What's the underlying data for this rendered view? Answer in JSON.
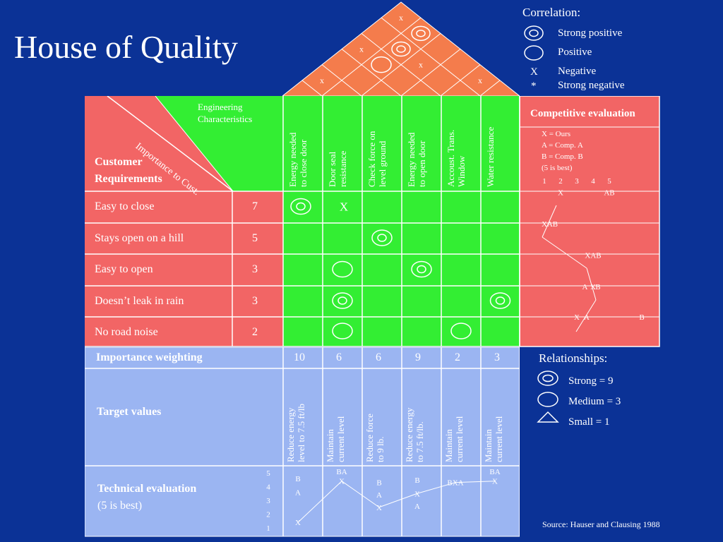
{
  "title": "House of Quality",
  "correlation_legend": {
    "heading": "Correlation:",
    "items": [
      {
        "symbol": "double-circle",
        "label": "Strong positive"
      },
      {
        "symbol": "circle",
        "label": "Positive"
      },
      {
        "symbol_text": "X",
        "label": "Negative"
      },
      {
        "symbol_text": "*",
        "label": "Strong negative"
      }
    ]
  },
  "roof_marks": [
    {
      "row": 0,
      "col": 0,
      "mark": "x"
    },
    {
      "row": 0,
      "col": 1,
      "mark": "double-circle"
    },
    {
      "row": 1,
      "col": 0,
      "mark": "double-circle"
    },
    {
      "row": 2,
      "col": 0,
      "mark": "x"
    },
    {
      "row": 2,
      "col": 1,
      "mark": "circle"
    },
    {
      "row": 2,
      "col": 2,
      "mark": "x"
    },
    {
      "row": 3,
      "col": 0,
      "mark": "x"
    },
    {
      "row": 3,
      "col": 3,
      "mark": "x"
    }
  ],
  "corner": {
    "engineering": "Engineering\nCharacteristics",
    "importance": "Importance to Cust.",
    "customer": "Customer\nRequirements"
  },
  "engineering_characteristics": [
    "Energy needed\nto close door",
    "Door seal\nresistance",
    "Check force on\nlevel ground",
    "Energy needed\nto open door",
    "Accoust. Trans.\nWindow",
    "Water resistance"
  ],
  "customer_requirements": [
    {
      "label": "Easy to close",
      "importance": "7"
    },
    {
      "label": "Stays open on a hill",
      "importance": "5"
    },
    {
      "label": "Easy to open",
      "importance": "3"
    },
    {
      "label": "Doesn’t leak in rain",
      "importance": "3"
    },
    {
      "label": "No road noise",
      "importance": "2"
    }
  ],
  "relationship_matrix": [
    [
      "double-circle",
      "X",
      "",
      "",
      "",
      ""
    ],
    [
      "",
      "",
      "double-circle",
      "",
      "",
      ""
    ],
    [
      "",
      "circle",
      "",
      "double-circle",
      "",
      ""
    ],
    [
      "",
      "double-circle",
      "",
      "",
      "",
      "double-circle"
    ],
    [
      "",
      "circle",
      "",
      "",
      "circle",
      ""
    ]
  ],
  "competitive_evaluation": {
    "heading": "Competitive evaluation",
    "legend": [
      "X = Ours",
      "A = Comp. A",
      "B = Comp. B",
      "(5 is best)"
    ],
    "scale": [
      "1",
      "2",
      "3",
      "4",
      "5"
    ],
    "rows": [
      [
        {
          "t": "X",
          "v": 2
        },
        {
          "t": "AB",
          "v": 5
        }
      ],
      [
        {
          "t": "X",
          "v": 1
        },
        {
          "t": "AB",
          "v": 1.5
        }
      ],
      [
        {
          "t": "XAB",
          "v": 4
        }
      ],
      [
        {
          "t": "A",
          "v": 3.5
        },
        {
          "t": "X",
          "v": 4
        },
        {
          "t": "B",
          "v": 4.3
        }
      ],
      [
        {
          "t": "X",
          "v": 3
        },
        {
          "t": "A",
          "v": 3.6
        },
        {
          "t": "B",
          "v": 7
        }
      ]
    ]
  },
  "importance_weighting": {
    "label": "Importance weighting",
    "values": [
      "10",
      "6",
      "6",
      "9",
      "2",
      "3"
    ]
  },
  "target_values": {
    "label": "Target values",
    "values": [
      "Reduce energy\nlevel to 7.5 ft/lb",
      "Maintain\ncurrent level",
      "Reduce force\nto 9 lb.",
      "Reduce energy\nto 7.5 ft/lb.",
      "Maintain\ncurrent level",
      "Maintain\ncurrent level"
    ]
  },
  "technical_evaluation": {
    "label": "Technical evaluation",
    "sublabel": "(5 is best)",
    "scale": [
      "5",
      "4",
      "3",
      "2",
      "1"
    ],
    "columns": [
      [
        {
          "t": "B",
          "v": 4.6
        },
        {
          "t": "A",
          "v": 3.6
        },
        {
          "t": "X",
          "v": 1.4
        }
      ],
      [
        {
          "t": "BA",
          "v": 5.1
        },
        {
          "t": "X",
          "v": 4.4
        }
      ],
      [
        {
          "t": "B",
          "v": 4.3
        },
        {
          "t": "A",
          "v": 3.4
        },
        {
          "t": "X",
          "v": 2.5
        }
      ],
      [
        {
          "t": "B",
          "v": 4.5
        },
        {
          "t": "X",
          "v": 3.5
        },
        {
          "t": "A",
          "v": 2.6
        }
      ],
      [
        {
          "t": "BXA",
          "v": 4.3
        }
      ],
      [
        {
          "t": "BA",
          "v": 5.1
        },
        {
          "t": "X",
          "v": 4.4
        }
      ]
    ]
  },
  "relationships_legend": {
    "heading": "Relationships:",
    "items": [
      {
        "symbol": "double-circle",
        "label": "Strong = 9"
      },
      {
        "symbol": "circle",
        "label": "Medium = 3"
      },
      {
        "symbol": "triangle",
        "label": "Small = 1"
      }
    ]
  },
  "source": "Source: Hauser and Clausing 1988"
}
